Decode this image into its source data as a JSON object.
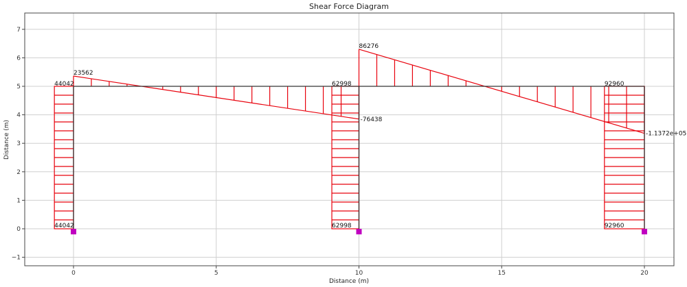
{
  "chart_data": {
    "type": "line",
    "title": "Shear Force Diagram",
    "xlabel": "Distance (m)",
    "ylabel": "Distance (m)",
    "xlim": [
      -2.1,
      21.1
    ],
    "ylim": [
      -1.3,
      7.6
    ],
    "xticks": [
      0,
      5,
      10,
      15,
      20
    ],
    "yticks": [
      -1,
      0,
      1,
      2,
      3,
      4,
      5,
      6,
      7
    ],
    "grid": true,
    "frame": {
      "columns": [
        {
          "x": 0,
          "y0": 0,
          "y1": 5
        },
        {
          "x": 10,
          "y0": 0,
          "y1": 5
        },
        {
          "x": 20,
          "y0": 0,
          "y1": 5
        }
      ],
      "beams": [
        {
          "x0": 0,
          "x1": 10,
          "y": 5
        },
        {
          "x0": 10,
          "x1": 20,
          "y": 5
        }
      ]
    },
    "supports": [
      {
        "x": 0,
        "y": -0.1
      },
      {
        "x": 10,
        "y": -0.1
      },
      {
        "x": 20,
        "y": -0.1
      }
    ],
    "support_color": "#c000c0",
    "diagram_color": "#e8000b",
    "member_color": "#333333",
    "column_shear": [
      {
        "x_left": -0.67,
        "x_right": 0,
        "y0": 0,
        "y1": 5,
        "top_label": "44042",
        "bottom_label": "44042"
      },
      {
        "x_left": 9.05,
        "x_right": 10,
        "y0": 0,
        "y1": 5,
        "top_label": "62998",
        "bottom_label": "62998"
      },
      {
        "x_left": 18.6,
        "x_right": 20,
        "y0": 0,
        "y1": 5,
        "top_label": "92960",
        "bottom_label": "92960"
      }
    ],
    "beam_shear": [
      {
        "x0": 0,
        "x1": 10,
        "y0": 5.36,
        "y1": 3.85,
        "start_label": "23562",
        "end_label": "-76438"
      },
      {
        "x0": 10,
        "x1": 20,
        "y0": 6.3,
        "y1": 3.35,
        "start_label": "86276",
        "end_label": "-1.1372e+05"
      }
    ],
    "hatch_spacing_m": 0.625,
    "column_hatch_count": 16
  }
}
